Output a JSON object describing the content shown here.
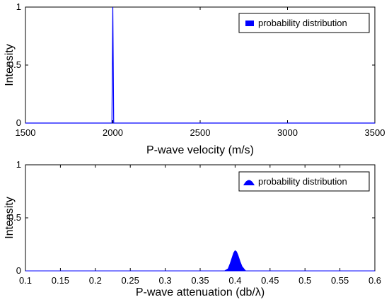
{
  "chart_data": [
    {
      "type": "line",
      "title": "",
      "xlabel": "P-wave velocity (m/s)",
      "ylabel": "Intensity",
      "xlim": [
        1500,
        3500
      ],
      "ylim": [
        0,
        1
      ],
      "xticks": [
        "1500",
        "2000",
        "2500",
        "3000",
        "3500"
      ],
      "yticks": [
        "0",
        "0.5",
        "1"
      ],
      "legend": {
        "position": "top-right"
      },
      "series": [
        {
          "name": "probability distribution",
          "color": "#0000ff",
          "x": [
            1500,
            1995,
            2000,
            2005,
            3500
          ],
          "y": [
            0,
            0,
            1,
            0,
            0
          ]
        }
      ],
      "grid": false
    },
    {
      "type": "area",
      "title": "",
      "xlabel": "P-wave attenuation (db/λ)",
      "ylabel": "Intensity",
      "xlim": [
        0.1,
        0.6
      ],
      "ylim": [
        0,
        1
      ],
      "xticks": [
        "0.1",
        "0.15",
        "0.2",
        "0.25",
        "0.3",
        "0.35",
        "0.4",
        "0.45",
        "0.5",
        "0.55",
        "0.6"
      ],
      "yticks": [
        "0",
        "0.5",
        "1"
      ],
      "legend": {
        "position": "top-right"
      },
      "series": [
        {
          "name": "probability distribution",
          "color": "#0000ff",
          "x": [
            0.1,
            0.385,
            0.39,
            0.393,
            0.396,
            0.398,
            0.4,
            0.402,
            0.404,
            0.407,
            0.41,
            0.415,
            0.6
          ],
          "y": [
            0,
            0,
            0.02,
            0.07,
            0.13,
            0.17,
            0.19,
            0.18,
            0.15,
            0.09,
            0.04,
            0,
            0
          ]
        }
      ],
      "grid": false
    }
  ]
}
